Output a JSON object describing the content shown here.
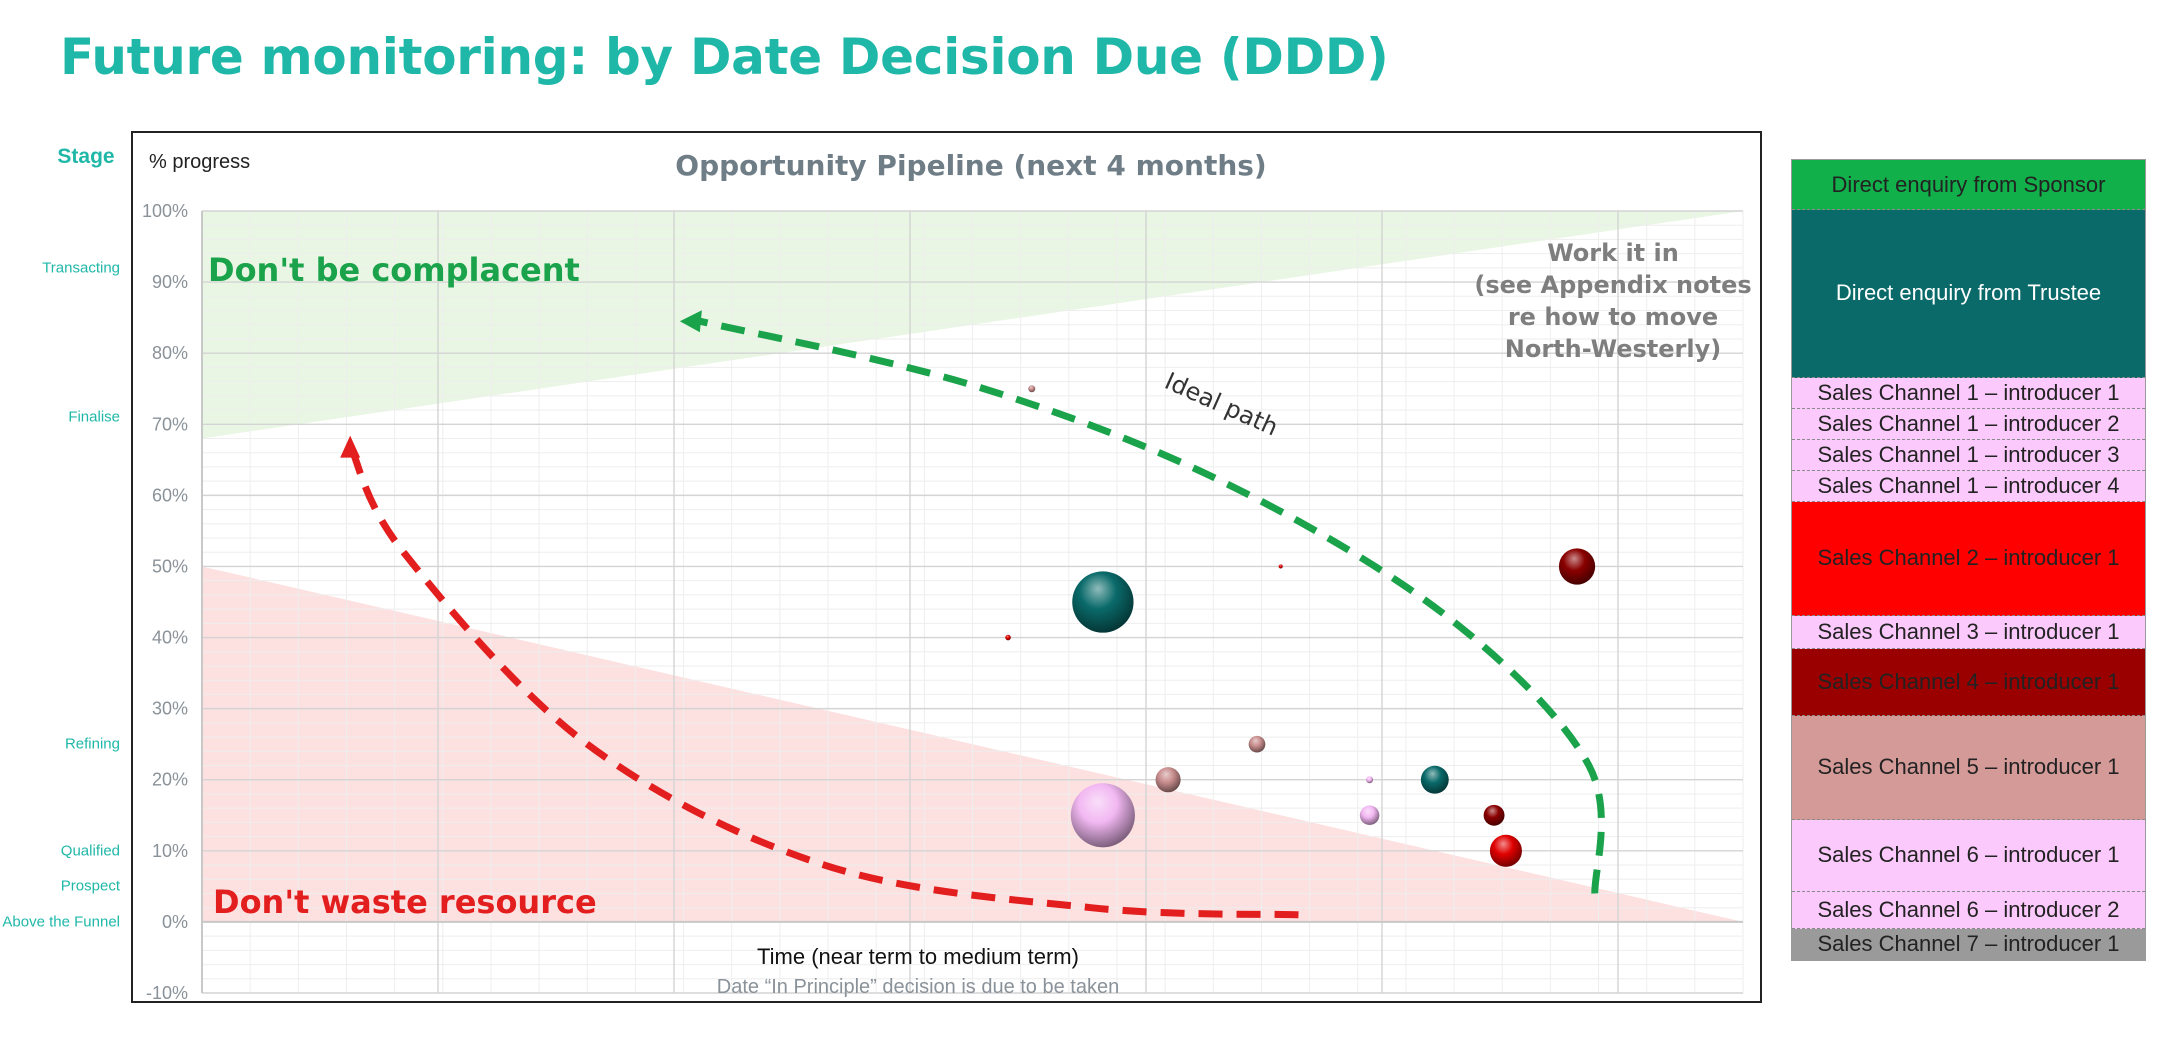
{
  "page": {
    "title": "Future monitoring: by Date Decision Due (DDD)",
    "stage_header": "Stage",
    "stages": [
      {
        "label": "Transacting",
        "value": 92
      },
      {
        "label": "Finalise",
        "value": 71
      },
      {
        "label": "Refining",
        "value": 25
      },
      {
        "label": "Qualified",
        "value": 10
      },
      {
        "label": "Prospect",
        "value": 5
      },
      {
        "label": "Above the Funnel",
        "value": 0
      }
    ]
  },
  "chart_data": {
    "type": "bubble",
    "title": "Opportunity Pipeline (next 4 months)",
    "ylabel": "% progress",
    "xlabel": "Time (near term to medium term)",
    "xlabel_sub": "Date “In Principle” decision is due to be taken",
    "ylim": [
      -10,
      100
    ],
    "xlim": [
      0,
      13
    ],
    "yticks": [
      "-10%",
      "0%",
      "10%",
      "20%",
      "30%",
      "40%",
      "50%",
      "60%",
      "70%",
      "80%",
      "90%",
      "100%"
    ],
    "grid": true,
    "colors": {
      "green": "#1aa34a",
      "red": "#e31e1e",
      "title": "#6f7d87",
      "axis": "#8a9299",
      "green_zone": "#e9f6e4",
      "red_zone": "#fde0e0"
    },
    "annotations": {
      "dont_be_complacent": "Don't be complacent",
      "dont_waste_resource": "Don't waste resource",
      "ideal_path": "Ideal path",
      "work_it_in": [
        "Work it in",
        "(see Appendix notes",
        "re how to move",
        "North-Westerly)"
      ]
    },
    "zones": {
      "green": [
        [
          0,
          68
        ],
        [
          13,
          100
        ],
        [
          0,
          100
        ]
      ],
      "red": [
        [
          0,
          50
        ],
        [
          13,
          0
        ],
        [
          0,
          0
        ]
      ]
    },
    "paths": {
      "red": [
        [
          9.25,
          1
        ],
        [
          7.5,
          2
        ],
        [
          5.25,
          8
        ],
        [
          3.25,
          25
        ],
        [
          1.7,
          52
        ],
        [
          1.25,
          67
        ]
      ],
      "green": [
        [
          11.75,
          4
        ],
        [
          11.7,
          22
        ],
        [
          10.5,
          43
        ],
        [
          8.6,
          62
        ],
        [
          6.5,
          75.5
        ],
        [
          4.2,
          84.5
        ],
        [
          4.2,
          87
        ]
      ]
    },
    "series": [
      {
        "name": "Sales Channel 5 – introducer 1",
        "color": "#c98e8e",
        "points": [
          [
            7.0,
            75,
            5
          ],
          [
            8.9,
            25,
            12
          ],
          [
            8.15,
            20,
            18
          ]
        ]
      },
      {
        "name": "Direct enquiry from Trustee",
        "color": "#0a6a6a",
        "points": [
          [
            7.6,
            45,
            44
          ],
          [
            10.4,
            20,
            20
          ]
        ]
      },
      {
        "name": "Sales Channel 2 – introducer 1",
        "color": "#e00000",
        "points": [
          [
            6.8,
            40,
            4
          ],
          [
            9.1,
            50,
            3
          ],
          [
            11.0,
            10,
            23
          ]
        ]
      },
      {
        "name": "Sales Channel 6 – introducer 1",
        "color": "#f2b8f2",
        "points": [
          [
            7.6,
            15,
            46
          ],
          [
            9.85,
            20,
            5
          ],
          [
            9.85,
            15,
            14
          ]
        ]
      },
      {
        "name": "Sales Channel 4 – introducer 1",
        "color": "#8a0000",
        "points": [
          [
            11.6,
            50,
            26
          ],
          [
            10.9,
            15,
            15
          ]
        ]
      }
    ]
  },
  "legend": {
    "items": [
      {
        "label": "Direct enquiry from Sponsor",
        "bg": "#11b04b",
        "weight": 50
      },
      {
        "label": "Direct enquiry from Trustee",
        "bg": "#0a6a6a",
        "text_color": "#ffffff",
        "weight": 167
      },
      {
        "label": "Sales Channel 1 – introducer 1",
        "bg": "#fbc9fb",
        "weight": 31
      },
      {
        "label": "Sales Channel 1 – introducer 2",
        "bg": "#fbc9fb",
        "weight": 31
      },
      {
        "label": "Sales Channel 1 – introducer 3",
        "bg": "#fbc9fb",
        "weight": 31
      },
      {
        "label": "Sales Channel 1 – introducer 4",
        "bg": "#fbc9fb",
        "weight": 31
      },
      {
        "label": "Sales Channel 2 – introducer 1",
        "bg": "#ff0000",
        "weight": 114
      },
      {
        "label": "Sales Channel 3 – introducer 1",
        "bg": "#fbc9fb",
        "weight": 33
      },
      {
        "label": "Sales Channel 4 – introducer 1",
        "bg": "#9a0000",
        "weight": 67
      },
      {
        "label": "Sales Channel 5 – introducer 1",
        "bg": "#d39a98",
        "weight": 103
      },
      {
        "label": "Sales Channel 6 – introducer 1",
        "bg": "#fbc9fb",
        "weight": 72
      },
      {
        "label": "Sales Channel 6 – introducer 2",
        "bg": "#fbc9fb",
        "weight": 37
      },
      {
        "label": "Sales Channel 7 – introducer 1",
        "bg": "#9a9a9a",
        "weight": 31
      }
    ]
  }
}
